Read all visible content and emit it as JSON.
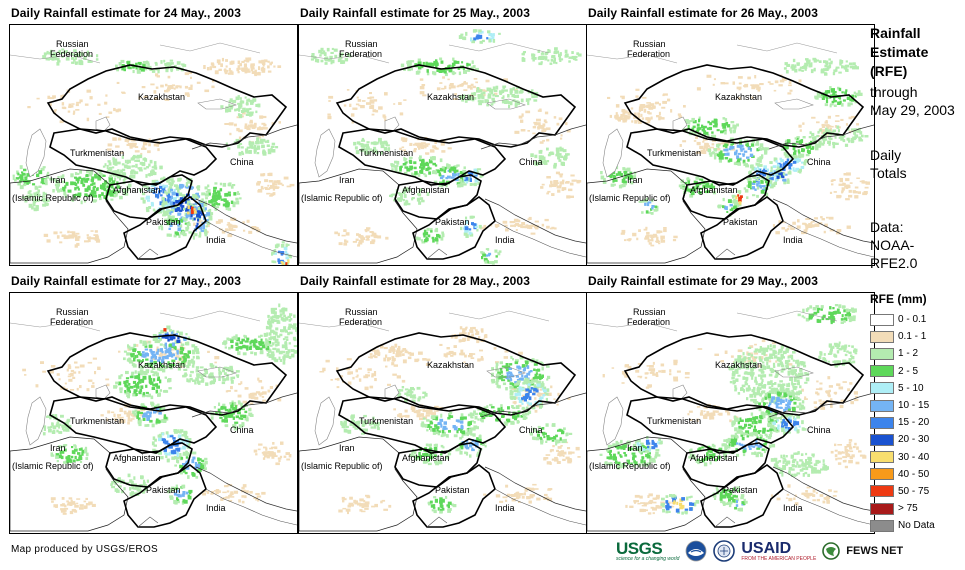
{
  "panels": [
    {
      "title": "Daily Rainfall estimate for 24 May., 2003"
    },
    {
      "title": "Daily Rainfall estimate for 25 May., 2003"
    },
    {
      "title": "Daily Rainfall estimate for 26 May., 2003"
    },
    {
      "title": "Daily Rainfall estimate for 27 May., 2003"
    },
    {
      "title": "Daily Rainfall estimate for 28 May., 2003"
    },
    {
      "title": "Daily Rainfall estimate for 29 May., 2003"
    }
  ],
  "map_labels": {
    "russia_1": "Russian",
    "russia_2": "Federation",
    "kazakhstan": "Kazakhstan",
    "turkmenistan": "Turkmenistan",
    "iran_1": "Iran",
    "iran_2": "(Islamic Republic of)",
    "afghanistan": "Afghanistan",
    "pakistan": "Pakistan",
    "china": "China",
    "india": "India"
  },
  "side_info": {
    "title_lines": [
      "Rainfall",
      "Estimate",
      "(RFE)"
    ],
    "through_1": "through",
    "through_2": "May 29, 2003",
    "totals_1": "Daily",
    "totals_2": "Totals",
    "data_1": "Data:",
    "data_2": "NOAA-",
    "data_3": "RFE2.0"
  },
  "legend": {
    "title": "RFE (mm)",
    "items": [
      {
        "label": "0 - 0.1",
        "color": "#ffffff"
      },
      {
        "label": "0.1 - 1",
        "color": "#f2dcb8"
      },
      {
        "label": "1 - 2",
        "color": "#b4ecb0"
      },
      {
        "label": "2 - 5",
        "color": "#5ed85a"
      },
      {
        "label": "5 - 10",
        "color": "#aeeef6"
      },
      {
        "label": "10 - 15",
        "color": "#74b4f4"
      },
      {
        "label": "15 - 20",
        "color": "#3c84ec"
      },
      {
        "label": "20 - 30",
        "color": "#1a52d0"
      },
      {
        "label": "30 - 40",
        "color": "#f8de6e"
      },
      {
        "label": "40 - 50",
        "color": "#f89a1a"
      },
      {
        "label": "50 - 75",
        "color": "#ee3a12"
      },
      {
        "label": "> 75",
        "color": "#a81a1a"
      },
      {
        "label": "No Data",
        "color": "#8c8c8c"
      }
    ]
  },
  "footer": {
    "credit": "Map produced by USGS/EROS"
  },
  "logos": {
    "usgs": "USGS",
    "usgs_tagline": "science for a changing world",
    "usaid": "USAID",
    "usaid_tagline": "FROM THE AMERICAN PEOPLE",
    "fews": "FEWS NET"
  }
}
